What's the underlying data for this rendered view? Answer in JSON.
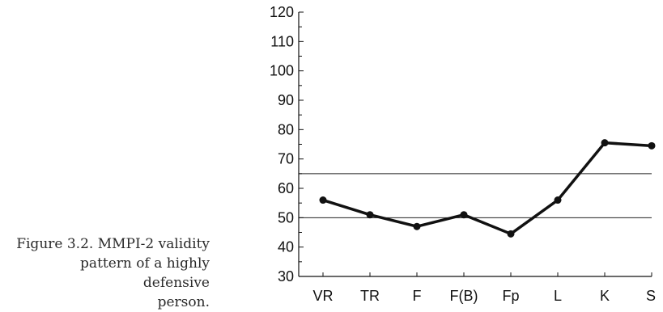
{
  "caption": {
    "line1": "Figure 3.2. MMPI-2 validity",
    "line2": "pattern of a highly defensive",
    "line3": "person."
  },
  "chart_data": {
    "type": "line",
    "title": "",
    "xlabel": "",
    "ylabel": "",
    "categories": [
      "VR",
      "TR",
      "F",
      "F(B)",
      "Fp",
      "L",
      "K",
      "S"
    ],
    "series": [
      {
        "values": [
          56,
          51,
          47,
          51,
          44.5,
          56,
          75.5,
          74.5
        ],
        "color": "#111111"
      }
    ],
    "ylim": [
      30,
      120
    ],
    "yticks": [
      30,
      40,
      50,
      60,
      70,
      80,
      90,
      100,
      110,
      120
    ],
    "reference_lines": [
      50,
      65
    ],
    "grid": false
  }
}
